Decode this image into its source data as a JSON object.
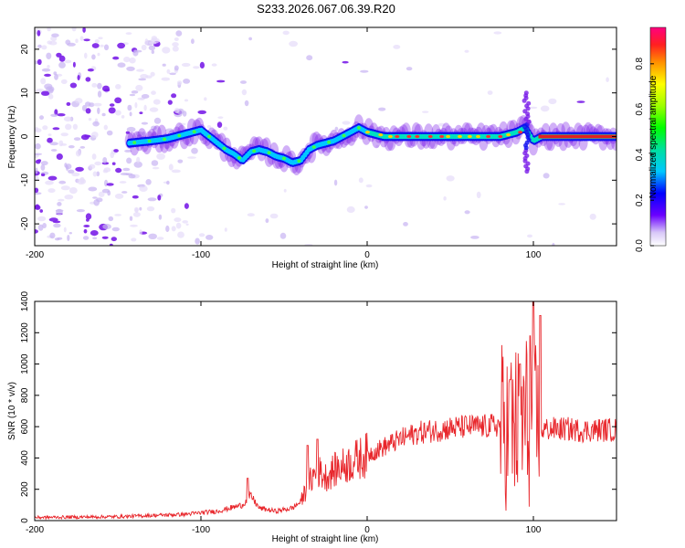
{
  "title": "S233.2026.067.06.39.R20",
  "colors": {
    "axis": "#000000",
    "snr_line": "#e8262b",
    "noise_dots": "#a070e0"
  },
  "chart_data": [
    {
      "type": "heatmap",
      "name": "spectrogram",
      "xlabel": "Height of straight line (km)",
      "ylabel": "Frequency (Hz)",
      "xlim": [
        -200,
        150
      ],
      "ylim": [
        -25,
        25
      ],
      "xticks": [
        -200,
        -100,
        0,
        100
      ],
      "yticks": [
        -20,
        -10,
        0,
        10,
        20
      ],
      "ridge": {
        "x": [
          -143,
          -130,
          -120,
          -110,
          -105,
          -100,
          -95,
          -90,
          -85,
          -80,
          -75,
          -70,
          -65,
          -60,
          -55,
          -50,
          -45,
          -40,
          -35,
          -30,
          -25,
          -20,
          -15,
          -10,
          -5,
          0,
          10,
          20,
          40,
          60,
          80,
          90,
          95,
          100,
          105,
          120,
          150
        ],
        "y": [
          -1.5,
          -1,
          -0.5,
          0.5,
          1,
          1.5,
          0,
          -1.5,
          -3,
          -4,
          -5.5,
          -3.5,
          -3,
          -3.5,
          -4.5,
          -5,
          -6,
          -5.5,
          -3,
          -2,
          -1.5,
          -1,
          0,
          1,
          2,
          1,
          0,
          0,
          0,
          0,
          0,
          1,
          2,
          -1,
          0,
          0,
          0
        ]
      },
      "colorbar": {
        "label": "Normalized spectral amplitude",
        "min": 0.0,
        "max": 0.96,
        "ticks": [
          "0.0",
          "0.2",
          "0.4",
          "0.6",
          "0.8"
        ]
      }
    },
    {
      "type": "line",
      "name": "snr",
      "xlabel": "Height of straight line (km)",
      "ylabel": "SNR (10 * v/v)",
      "xlim": [
        -200,
        150
      ],
      "ylim": [
        0,
        1400
      ],
      "xticks": [
        -200,
        -100,
        0,
        100
      ],
      "yticks": [
        0,
        200,
        400,
        600,
        800,
        1000,
        1200,
        1400
      ],
      "envelope": {
        "x": [
          -200,
          -150,
          -110,
          -100,
          -90,
          -75,
          -70,
          -65,
          -55,
          -45,
          -40,
          -35,
          -30,
          -25,
          -20,
          -10,
          0,
          10,
          20,
          30,
          40,
          50,
          60,
          70,
          80,
          85,
          90,
          95,
          100,
          105,
          110,
          120,
          130,
          140,
          150
        ],
        "y": [
          20,
          25,
          40,
          50,
          60,
          100,
          160,
          80,
          60,
          80,
          120,
          240,
          320,
          280,
          320,
          370,
          420,
          470,
          520,
          560,
          575,
          590,
          600,
          600,
          610,
          580,
          600,
          640,
          620,
          580,
          585,
          585,
          575,
          580,
          580
        ]
      },
      "peaks": [
        {
          "x": -72,
          "y": 270
        },
        {
          "x": -36,
          "y": 480
        },
        {
          "x": -30,
          "y": 520
        },
        {
          "x": 86,
          "y": 900
        },
        {
          "x": 92,
          "y": 1000
        },
        {
          "x": 98,
          "y": 1180
        },
        {
          "x": 100,
          "y": 1420
        },
        {
          "x": 104,
          "y": 1310
        }
      ]
    }
  ]
}
